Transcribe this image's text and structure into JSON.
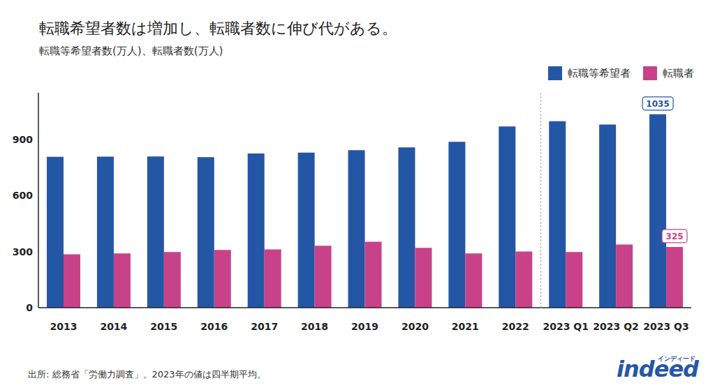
{
  "chart_data": {
    "type": "bar",
    "title": "転職希望者数は増加し、転職者数に伸び代がある。",
    "subtitle": "転職等希望者数(万人)、転職者数(万人)",
    "categories": [
      "2013",
      "2014",
      "2015",
      "2016",
      "2017",
      "2018",
      "2019",
      "2020",
      "2021",
      "2022",
      "2023 Q1",
      "2023 Q2",
      "2023 Q3"
    ],
    "series": [
      {
        "name": "転職等希望者",
        "color": "#2456a6",
        "values": [
          807,
          808,
          809,
          806,
          825,
          830,
          843,
          858,
          888,
          970,
          998,
          980,
          1035
        ],
        "value_labels": [
          null,
          null,
          null,
          null,
          null,
          null,
          null,
          null,
          null,
          null,
          null,
          null,
          "1035"
        ]
      },
      {
        "name": "転職者",
        "color": "#c8428a",
        "values": [
          286,
          290,
          298,
          309,
          312,
          331,
          353,
          320,
          290,
          301,
          298,
          338,
          325
        ],
        "value_labels": [
          null,
          null,
          null,
          null,
          null,
          null,
          null,
          null,
          null,
          null,
          null,
          null,
          "325"
        ]
      }
    ],
    "ylim": [
      0,
      1150
    ],
    "yticks": [
      0,
      300,
      600,
      900
    ],
    "grid": false,
    "legend": "top-right",
    "source": "出所: 総務省「労働力調査」。2023年の値は四半期平均。",
    "logo": "indeed",
    "logo_subtext": "インディード"
  }
}
